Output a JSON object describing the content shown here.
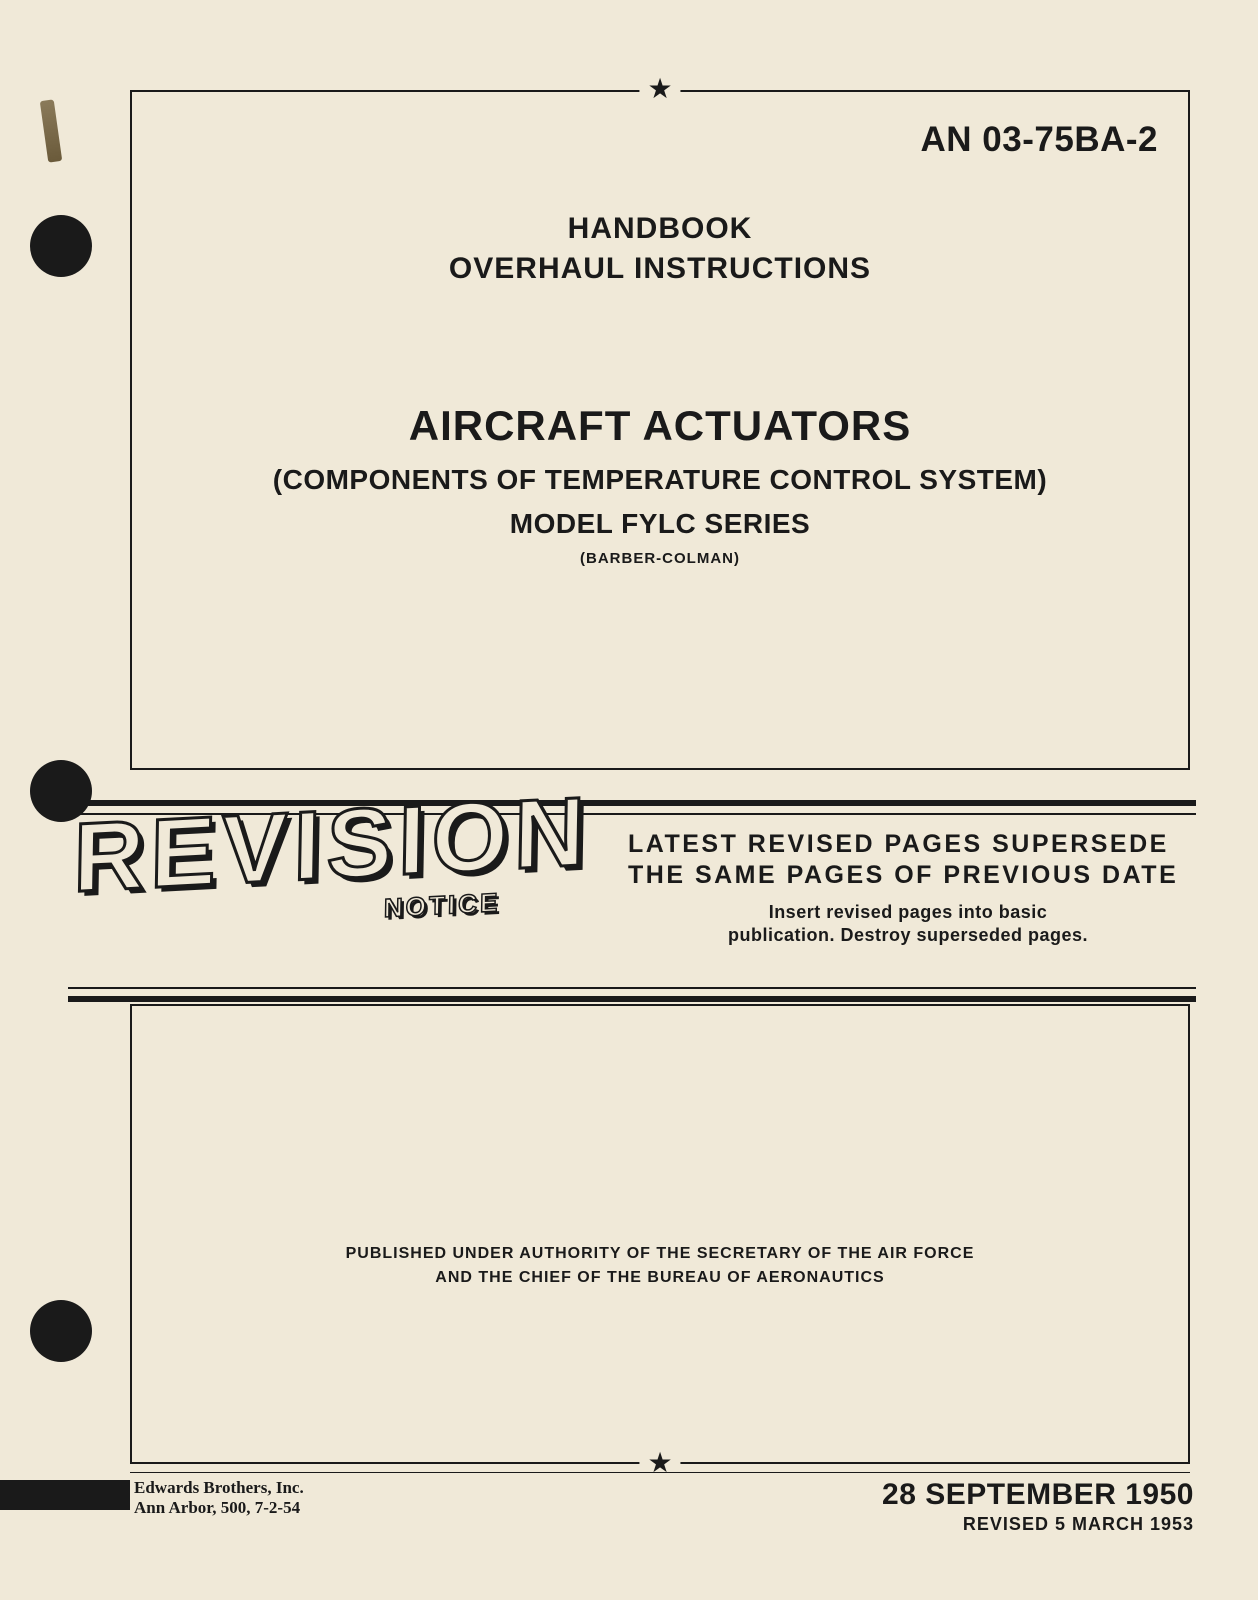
{
  "document_id": "AN 03-75BA-2",
  "header": {
    "line1": "HANDBOOK",
    "line2": "OVERHAUL INSTRUCTIONS"
  },
  "title": {
    "main": "AIRCRAFT ACTUATORS",
    "subtitle": "(COMPONENTS OF TEMPERATURE CONTROL SYSTEM)",
    "model": "MODEL FYLC SERIES",
    "manufacturer": "(BARBER-COLMAN)"
  },
  "revision": {
    "word": "REVISION",
    "notice": "NOTICE",
    "line1": "LATEST REVISED PAGES SUPERSEDE",
    "line2": "THE SAME PAGES OF PREVIOUS DATE",
    "instruction1": "Insert revised pages into basic",
    "instruction2": "publication. Destroy superseded pages."
  },
  "authority": {
    "line1": "PUBLISHED UNDER AUTHORITY OF THE SECRETARY OF THE AIR FORCE",
    "line2": "AND THE CHIEF OF THE BUREAU OF AERONAUTICS"
  },
  "printer": {
    "name": "Edwards Brothers, Inc.",
    "detail": "Ann Arbor, 500, 7-2-54"
  },
  "dates": {
    "original": "28 SEPTEMBER 1950",
    "revised": "REVISED 5 MARCH 1953"
  },
  "stars": "★",
  "colors": {
    "paper": "#f0e9d8",
    "ink": "#1a1a1a"
  }
}
